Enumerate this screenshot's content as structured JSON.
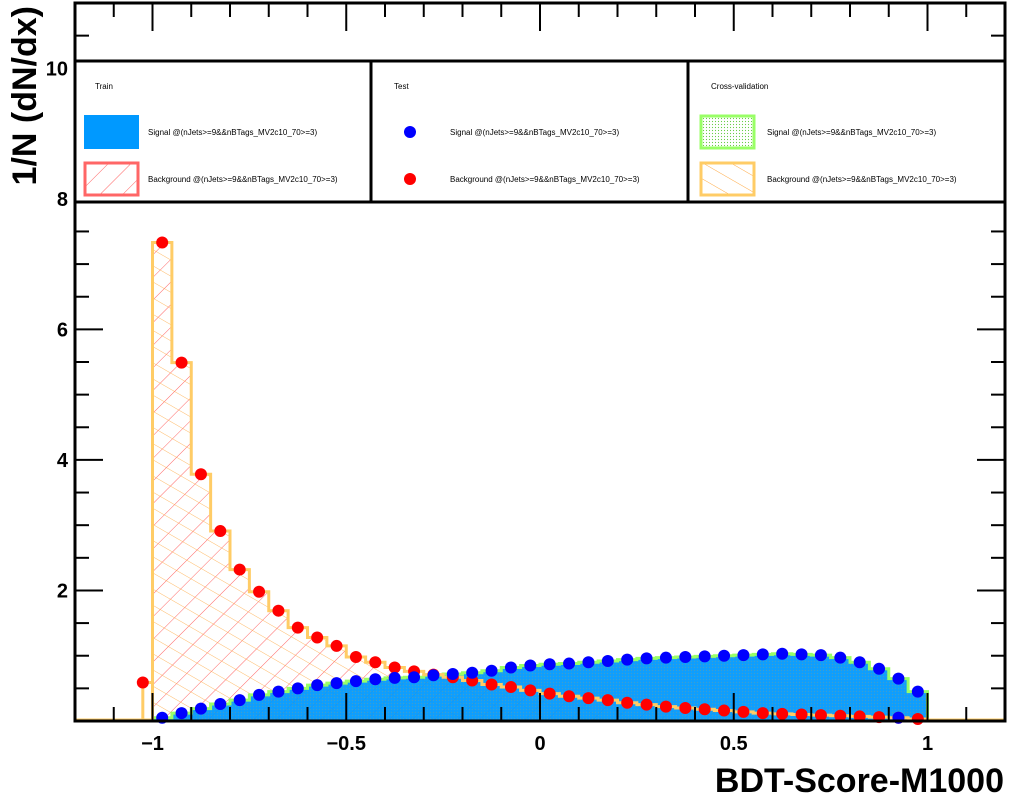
{
  "chart_data": {
    "type": "histogram",
    "xlabel": "BDT-Score-M1000",
    "ylabel": "1/N (dN/dx)",
    "xlim": [
      -1.2,
      1.2
    ],
    "ylim": [
      0,
      11
    ],
    "x_ticks": [
      {
        "value": -1,
        "label": "−1"
      },
      {
        "value": -0.5,
        "label": "−0.5"
      },
      {
        "value": 0,
        "label": "0"
      },
      {
        "value": 0.5,
        "label": "0.5"
      },
      {
        "value": 1,
        "label": "1"
      }
    ],
    "y_ticks": [
      {
        "value": 2,
        "label": "2"
      },
      {
        "value": 4,
        "label": "4"
      },
      {
        "value": 6,
        "label": "6"
      },
      {
        "value": 8,
        "label": "8"
      },
      {
        "value": 10,
        "label": "10"
      }
    ],
    "legend": {
      "columns": [
        {
          "header": "Train",
          "entries": [
            {
              "label": "Signal @(nJets>=9&&nBTags_MV2c10_70>=3)",
              "style": "fill",
              "color": "#0099ff"
            },
            {
              "label": "Background @(nJets>=9&&nBTags_MV2c10_70>=3)",
              "style": "hatch",
              "color": "#ff6666"
            }
          ]
        },
        {
          "header": "Test",
          "entries": [
            {
              "label": "Signal @(nJets>=9&&nBTags_MV2c10_70>=3)",
              "style": "marker",
              "color": "#0000ff"
            },
            {
              "label": "Background @(nJets>=9&&nBTags_MV2c10_70>=3)",
              "style": "marker",
              "color": "#ff0000"
            }
          ]
        },
        {
          "header": "Cross-validation",
          "entries": [
            {
              "label": "Signal @(nJets>=9&&nBTags_MV2c10_70>=3)",
              "style": "dotfill",
              "color": "#99ff66"
            },
            {
              "label": "Background @(nJets>=9&&nBTags_MV2c10_70>=3)",
              "style": "hatch",
              "color": "#ffcc66"
            }
          ]
        }
      ]
    },
    "bins": {
      "start": -1.0,
      "width": 0.05,
      "count": 40
    },
    "extra_points": {
      "background_at_minus_1_025": 0.59,
      "signal_tail": [
        {
          "x": 0.925,
          "y": 0.05
        }
      ]
    },
    "series": [
      {
        "name": "Signal",
        "values": [
          0.05,
          0.12,
          0.19,
          0.26,
          0.32,
          0.4,
          0.45,
          0.5,
          0.55,
          0.58,
          0.61,
          0.64,
          0.66,
          0.67,
          0.7,
          0.72,
          0.74,
          0.77,
          0.82,
          0.85,
          0.87,
          0.88,
          0.9,
          0.92,
          0.94,
          0.96,
          0.97,
          0.98,
          0.99,
          1.0,
          1.01,
          1.02,
          1.03,
          1.02,
          1.01,
          0.97,
          0.9,
          0.8,
          0.65,
          0.45
        ]
      },
      {
        "name": "Background",
        "values": [
          7.33,
          5.49,
          3.78,
          2.91,
          2.32,
          1.98,
          1.69,
          1.43,
          1.28,
          1.15,
          0.98,
          0.9,
          0.82,
          0.76,
          0.71,
          0.67,
          0.62,
          0.56,
          0.52,
          0.47,
          0.42,
          0.38,
          0.35,
          0.32,
          0.28,
          0.25,
          0.22,
          0.2,
          0.18,
          0.16,
          0.14,
          0.12,
          0.11,
          0.1,
          0.09,
          0.08,
          0.07,
          0.06,
          0.05,
          0.03
        ]
      }
    ]
  }
}
